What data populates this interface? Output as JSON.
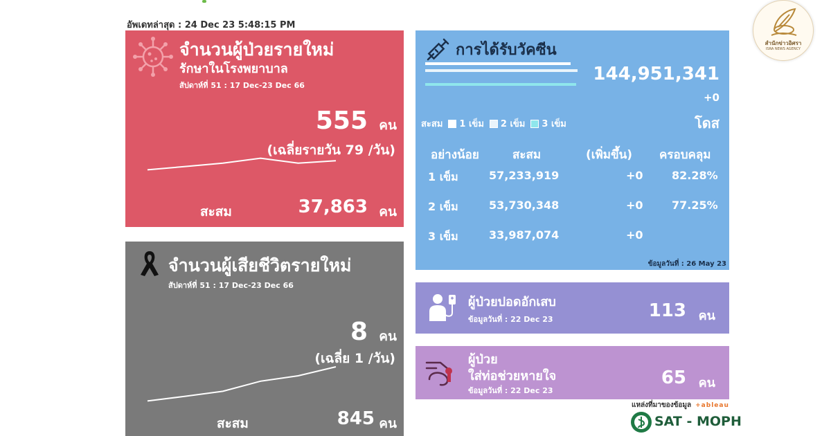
{
  "updated": "อัพเดทล่าสุด : 24 Dec 23 5:48:15 PM",
  "new_cases": {
    "title": "จำนวนผู้ป่วยรายใหม่",
    "subtitle": "รักษาในโรงพยาบาล",
    "week": "สัปดาห์ที่ 51 : 17 Dec-23 Dec 66",
    "count": "555",
    "unit": "คน",
    "average": "(เฉลี่ยรายวัน 79 /วัน)",
    "cumulative_label": "สะสม",
    "cumulative_value": "37,863",
    "cumulative_unit": "คน",
    "sparkline": [
      0.15,
      0.35,
      0.55,
      0.85,
      0.55,
      0.7
    ],
    "icon": "virus-icon"
  },
  "deaths": {
    "title": "จำนวนผู้เสียชีวิตรายใหม่",
    "week": "สัปดาห์ที่  51 : 17 Dec-23 Dec 66",
    "count": "8",
    "unit": "คน",
    "average": "(เฉลี่ย 1 /วัน)",
    "cumulative_label": "สะสม",
    "cumulative_value": "845",
    "cumulative_unit": "คน",
    "sparkline": [
      0.05,
      0.18,
      0.32,
      0.6,
      0.75,
      1.0
    ],
    "icon": "black-ribbon-icon"
  },
  "vaccination": {
    "title": "การได้รับวัคซีน",
    "total": "144,951,341",
    "change": "+0",
    "unit": "โดส",
    "legend": {
      "label": "สะสม",
      "items": [
        "1 เข็ม",
        "2 เข็ม",
        "3 เข็ม"
      ]
    },
    "headers": [
      "อย่างน้อย",
      "สะสม",
      "(เพิ่มขึ้น)",
      "ครอบคลุม"
    ],
    "rows": [
      {
        "dose": "1 เข็ม",
        "cumulative": "57,233,919",
        "increase": "+0",
        "coverage": "82.28%"
      },
      {
        "dose": "2 เข็ม",
        "cumulative": "53,730,348",
        "increase": "+0",
        "coverage": "77.25%"
      },
      {
        "dose": "3 เข็ม",
        "cumulative": "33,987,074",
        "increase": "+0",
        "coverage": ""
      }
    ],
    "note": "ข้อมูลวันที่ : 26 May 23",
    "colors": {
      "dose1": "#ffffff",
      "dose2": "#eaf4fb",
      "dose3": "#8fe6ec"
    },
    "icon": "syringe-icon"
  },
  "pneumonia": {
    "title": "ผู้ป่วยปอดอักเสบ",
    "note": "ข้อมูลวันที่ : 22 Dec 23",
    "count": "113",
    "unit": "คน",
    "icon": "patient-iv-icon"
  },
  "ventilator": {
    "title1": "ผู้ป่วย",
    "title2": "ใส่ท่อช่วยหายใจ",
    "note": "ข้อมูลวันที่ : 22 Dec 23",
    "count": "65",
    "unit": "คน",
    "icon": "ventilator-icon"
  },
  "source": {
    "label": "แหล่งที่มาของข้อมูล",
    "tableau": "+ableau",
    "moph": "SAT - MOPH"
  },
  "isra": {
    "name_th": "สำนักข่าวอิศรา",
    "name_en": "ISRA NEWS AGENCY"
  },
  "colors": {
    "new_cases_bg": "#dd5867",
    "deaths_bg": "#7a7a7a",
    "vaccine_bg": "#78b2e6",
    "pneumonia_bg": "#9590d3",
    "ventilator_bg": "#bd93d1"
  }
}
